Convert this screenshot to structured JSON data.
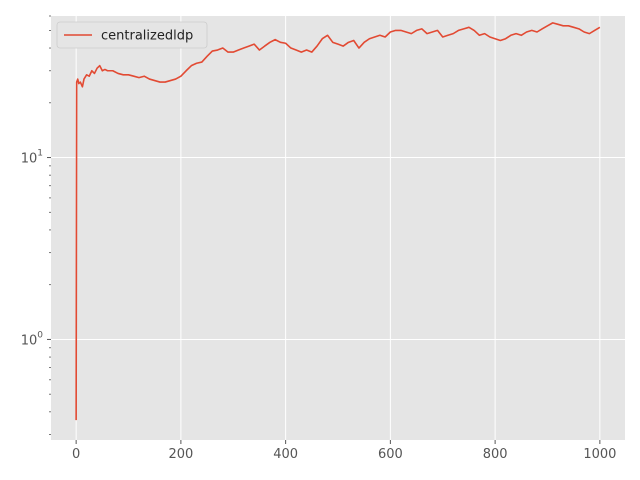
{
  "chart_data": {
    "type": "line",
    "style": "ggplot",
    "title": "",
    "xlabel": "",
    "ylabel": "",
    "yscale": "log",
    "xlim": [
      -48,
      1048
    ],
    "ylim": [
      0.28,
      60
    ],
    "grid": true,
    "legend_position": "top-left",
    "colors": {
      "background": "#e5e5e5",
      "grid": "#ffffff",
      "series": "#e24a33",
      "tick_text": "#555555"
    },
    "x_ticks": [
      {
        "value": 0,
        "label": "0"
      },
      {
        "value": 200,
        "label": "200"
      },
      {
        "value": 400,
        "label": "400"
      },
      {
        "value": 600,
        "label": "600"
      },
      {
        "value": 800,
        "label": "800"
      },
      {
        "value": 1000,
        "label": "1000"
      }
    ],
    "y_ticks": [
      {
        "value": 1,
        "base": "10",
        "exp": "0"
      },
      {
        "value": 10,
        "base": "10",
        "exp": "1"
      }
    ],
    "series": [
      {
        "name": "centralizedldp",
        "x": [
          0,
          1,
          3,
          5,
          8,
          12,
          15,
          20,
          25,
          30,
          35,
          40,
          45,
          50,
          55,
          60,
          70,
          80,
          90,
          100,
          110,
          120,
          130,
          140,
          150,
          160,
          170,
          180,
          190,
          200,
          210,
          220,
          230,
          240,
          250,
          260,
          270,
          280,
          290,
          300,
          310,
          320,
          330,
          340,
          350,
          360,
          370,
          380,
          390,
          400,
          410,
          420,
          430,
          440,
          450,
          460,
          470,
          480,
          490,
          500,
          510,
          520,
          530,
          540,
          550,
          560,
          570,
          580,
          590,
          600,
          610,
          620,
          630,
          640,
          650,
          660,
          670,
          680,
          690,
          700,
          710,
          720,
          730,
          740,
          750,
          760,
          770,
          780,
          790,
          800,
          810,
          820,
          830,
          840,
          850,
          860,
          870,
          880,
          890,
          900,
          910,
          920,
          930,
          940,
          950,
          960,
          970,
          980,
          990,
          1000
        ],
        "y": [
          0.36,
          26,
          27,
          25.5,
          26,
          24.5,
          27,
          28.5,
          28,
          30,
          29,
          31,
          32,
          30,
          30.5,
          30,
          30,
          29,
          28.5,
          28.5,
          28,
          27.5,
          28,
          27,
          26.5,
          26,
          26,
          26.5,
          27,
          28,
          30,
          32,
          33,
          33.5,
          36,
          38.5,
          39,
          40,
          38,
          38,
          39,
          40,
          41,
          42,
          39,
          41,
          43,
          44.5,
          43,
          42.5,
          40,
          39,
          38,
          39,
          38,
          41,
          45,
          47,
          43,
          42,
          41,
          43,
          44,
          40,
          43,
          45,
          46,
          47,
          46,
          49,
          50,
          50,
          49,
          48,
          50,
          51,
          48,
          49,
          50,
          46,
          47,
          48,
          50,
          51,
          52,
          50,
          47,
          48,
          46,
          45,
          44,
          45,
          47,
          48,
          47,
          49,
          50,
          49,
          51,
          53,
          55,
          54,
          53,
          53,
          52,
          51,
          49,
          48,
          50,
          52
        ]
      }
    ]
  }
}
